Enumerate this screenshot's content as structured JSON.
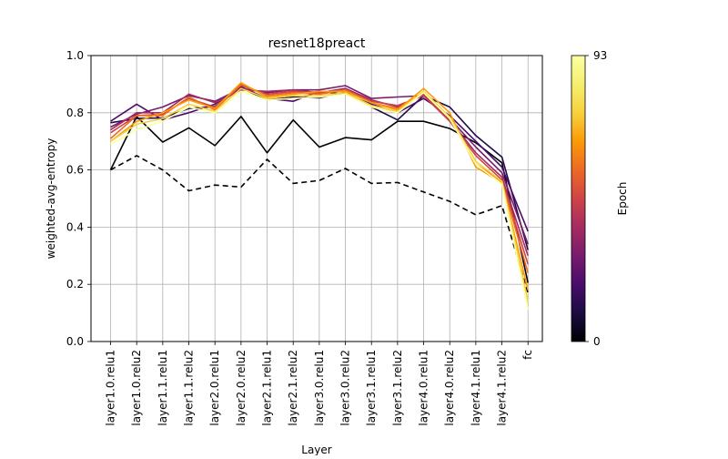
{
  "chart_data": {
    "type": "line",
    "title": "resnet18preact",
    "xlabel": "Layer",
    "ylabel": "weighted-avg-entropy",
    "ylim": [
      0,
      1
    ],
    "yticks": [
      "0.0",
      "0.2",
      "0.4",
      "0.6",
      "0.8",
      "1.0"
    ],
    "grid": true,
    "categories": [
      "layer1.0.relu1",
      "layer1.0.relu2",
      "layer1.1.relu1",
      "layer1.1.relu2",
      "layer2.0.relu1",
      "layer2.0.relu2",
      "layer2.1.relu1",
      "layer2.1.relu2",
      "layer3.0.relu1",
      "layer3.0.relu2",
      "layer3.1.relu1",
      "layer3.1.relu2",
      "layer4.0.relu1",
      "layer4.0.relu2",
      "layer4.1.relu1",
      "layer4.1.relu2",
      "fc"
    ],
    "colorbar": {
      "label": "Epoch",
      "min_label": "0",
      "max_label": "93",
      "colormap": "inferno"
    },
    "series": [
      {
        "epoch": 0,
        "color": "#000004",
        "dashed": true,
        "values": [
          0.6,
          0.65,
          0.6,
          0.527,
          0.547,
          0.54,
          0.637,
          0.553,
          0.563,
          0.605,
          0.553,
          0.556,
          0.523,
          0.49,
          0.443,
          0.475,
          0.17
        ]
      },
      {
        "epoch": 1,
        "color": "#000004",
        "dashed": false,
        "values": [
          0.6,
          0.787,
          0.697,
          0.747,
          0.685,
          0.787,
          0.66,
          0.775,
          0.68,
          0.713,
          0.705,
          0.77,
          0.77,
          0.745,
          0.695,
          0.625,
          0.205
        ]
      },
      {
        "epoch": 10,
        "color": "#1f0c48",
        "dashed": false,
        "values": [
          0.765,
          0.78,
          0.782,
          0.815,
          0.822,
          0.887,
          0.845,
          0.855,
          0.852,
          0.872,
          0.82,
          0.775,
          0.86,
          0.82,
          0.72,
          0.645,
          0.32
        ]
      },
      {
        "epoch": 20,
        "color": "#4b0c6b",
        "dashed": false,
        "values": [
          0.77,
          0.83,
          0.775,
          0.8,
          0.83,
          0.89,
          0.85,
          0.84,
          0.875,
          0.865,
          0.83,
          0.8,
          0.85,
          0.79,
          0.7,
          0.61,
          0.385
        ]
      },
      {
        "epoch": 30,
        "color": "#781c6d",
        "dashed": false,
        "values": [
          0.75,
          0.795,
          0.82,
          0.86,
          0.84,
          0.885,
          0.87,
          0.88,
          0.88,
          0.895,
          0.85,
          0.855,
          0.86,
          0.78,
          0.68,
          0.59,
          0.34
        ]
      },
      {
        "epoch": 40,
        "color": "#a52c60",
        "dashed": false,
        "values": [
          0.74,
          0.8,
          0.8,
          0.865,
          0.835,
          0.88,
          0.875,
          0.88,
          0.87,
          0.885,
          0.845,
          0.82,
          0.865,
          0.775,
          0.66,
          0.575,
          0.3
        ]
      },
      {
        "epoch": 50,
        "color": "#cf4446",
        "dashed": false,
        "values": [
          0.73,
          0.79,
          0.795,
          0.85,
          0.82,
          0.895,
          0.865,
          0.875,
          0.87,
          0.88,
          0.84,
          0.825,
          0.86,
          0.77,
          0.65,
          0.565,
          0.27
        ]
      },
      {
        "epoch": 60,
        "color": "#ed6925",
        "dashed": false,
        "values": [
          0.71,
          0.79,
          0.79,
          0.855,
          0.81,
          0.9,
          0.86,
          0.87,
          0.865,
          0.88,
          0.835,
          0.815,
          0.87,
          0.78,
          0.62,
          0.56,
          0.24
        ]
      },
      {
        "epoch": 70,
        "color": "#fb9b06",
        "dashed": false,
        "values": [
          0.7,
          0.77,
          0.8,
          0.845,
          0.815,
          0.905,
          0.855,
          0.865,
          0.875,
          0.875,
          0.835,
          0.81,
          0.885,
          0.8,
          0.61,
          0.555,
          0.18
        ]
      },
      {
        "epoch": 80,
        "color": "#f7d13d",
        "dashed": false,
        "values": [
          0.7,
          0.76,
          0.78,
          0.83,
          0.805,
          0.885,
          0.85,
          0.86,
          0.86,
          0.87,
          0.825,
          0.805,
          0.875,
          0.785,
          0.63,
          0.56,
          0.14
        ]
      },
      {
        "epoch": 93,
        "color": "#fcffa4",
        "dashed": false,
        "values": [
          0.69,
          0.74,
          0.77,
          0.82,
          0.8,
          0.875,
          0.845,
          0.85,
          0.855,
          0.865,
          0.82,
          0.8,
          0.87,
          0.78,
          0.62,
          0.55,
          0.11
        ]
      }
    ]
  }
}
